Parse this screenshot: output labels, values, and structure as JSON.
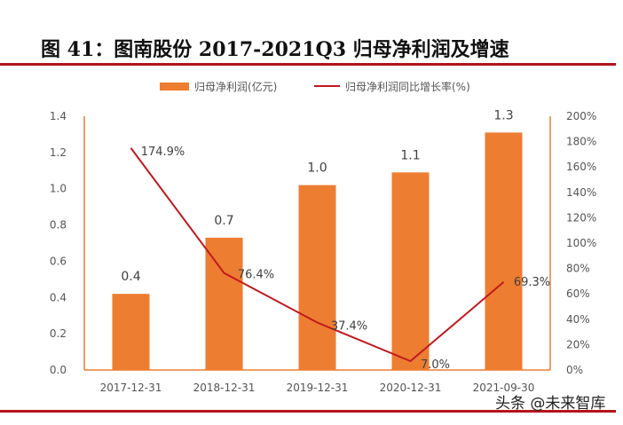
{
  "title": "图 41：图南股份 2017-2021Q3 归母净利润及增速",
  "watermark": "头条 @未来智库",
  "chart_data": {
    "type": "bar",
    "categories": [
      "2017-12-31",
      "2018-12-31",
      "2019-12-31",
      "2020-12-31",
      "2021-09-30"
    ],
    "series": [
      {
        "name": "归母净利润(亿元)",
        "type": "bar",
        "axis": "left",
        "values": [
          0.42,
          0.73,
          1.02,
          1.09,
          1.31
        ],
        "labels": [
          "0.4",
          "0.7",
          "1.0",
          "1.1",
          "1.3"
        ],
        "color": "#ed7d31"
      },
      {
        "name": "归母净利润同比增长率(%)",
        "type": "line",
        "axis": "right",
        "values": [
          174.9,
          76.4,
          37.4,
          7.0,
          69.3
        ],
        "labels": [
          "174.9%",
          "76.4%",
          "37.4%",
          "7.0%",
          "69.3%"
        ],
        "color": "#c0191f"
      }
    ],
    "left_axis": {
      "ylim": [
        0,
        1.4
      ],
      "ticks": [
        "0.0",
        "0.2",
        "0.4",
        "0.6",
        "0.8",
        "1.0",
        "1.2",
        "1.4"
      ]
    },
    "right_axis": {
      "ylim": [
        0,
        200
      ],
      "ticks": [
        "0%",
        "20%",
        "40%",
        "60%",
        "80%",
        "100%",
        "120%",
        "140%",
        "160%",
        "180%",
        "200%"
      ]
    },
    "legend": "top-center"
  }
}
